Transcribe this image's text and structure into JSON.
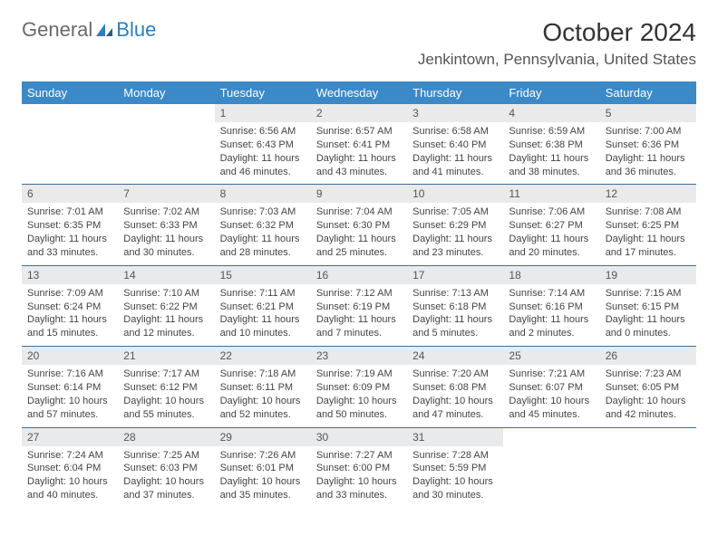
{
  "header": {
    "logo_part1": "General",
    "logo_part2": "Blue",
    "month_title": "October 2024",
    "location": "Jenkintown, Pennsylvania, United States"
  },
  "colors": {
    "header_blue": "#3b89c7",
    "text_gray": "#6a6a6a",
    "brand_blue": "#2a7fbf",
    "daynum_bg": "#e9eaeb"
  },
  "day_names": [
    "Sunday",
    "Monday",
    "Tuesday",
    "Wednesday",
    "Thursday",
    "Friday",
    "Saturday"
  ],
  "weeks": [
    [
      null,
      null,
      {
        "n": "1",
        "sr": "Sunrise: 6:56 AM",
        "ss": "Sunset: 6:43 PM",
        "dl1": "Daylight: 11 hours",
        "dl2": "and 46 minutes."
      },
      {
        "n": "2",
        "sr": "Sunrise: 6:57 AM",
        "ss": "Sunset: 6:41 PM",
        "dl1": "Daylight: 11 hours",
        "dl2": "and 43 minutes."
      },
      {
        "n": "3",
        "sr": "Sunrise: 6:58 AM",
        "ss": "Sunset: 6:40 PM",
        "dl1": "Daylight: 11 hours",
        "dl2": "and 41 minutes."
      },
      {
        "n": "4",
        "sr": "Sunrise: 6:59 AM",
        "ss": "Sunset: 6:38 PM",
        "dl1": "Daylight: 11 hours",
        "dl2": "and 38 minutes."
      },
      {
        "n": "5",
        "sr": "Sunrise: 7:00 AM",
        "ss": "Sunset: 6:36 PM",
        "dl1": "Daylight: 11 hours",
        "dl2": "and 36 minutes."
      }
    ],
    [
      {
        "n": "6",
        "sr": "Sunrise: 7:01 AM",
        "ss": "Sunset: 6:35 PM",
        "dl1": "Daylight: 11 hours",
        "dl2": "and 33 minutes."
      },
      {
        "n": "7",
        "sr": "Sunrise: 7:02 AM",
        "ss": "Sunset: 6:33 PM",
        "dl1": "Daylight: 11 hours",
        "dl2": "and 30 minutes."
      },
      {
        "n": "8",
        "sr": "Sunrise: 7:03 AM",
        "ss": "Sunset: 6:32 PM",
        "dl1": "Daylight: 11 hours",
        "dl2": "and 28 minutes."
      },
      {
        "n": "9",
        "sr": "Sunrise: 7:04 AM",
        "ss": "Sunset: 6:30 PM",
        "dl1": "Daylight: 11 hours",
        "dl2": "and 25 minutes."
      },
      {
        "n": "10",
        "sr": "Sunrise: 7:05 AM",
        "ss": "Sunset: 6:29 PM",
        "dl1": "Daylight: 11 hours",
        "dl2": "and 23 minutes."
      },
      {
        "n": "11",
        "sr": "Sunrise: 7:06 AM",
        "ss": "Sunset: 6:27 PM",
        "dl1": "Daylight: 11 hours",
        "dl2": "and 20 minutes."
      },
      {
        "n": "12",
        "sr": "Sunrise: 7:08 AM",
        "ss": "Sunset: 6:25 PM",
        "dl1": "Daylight: 11 hours",
        "dl2": "and 17 minutes."
      }
    ],
    [
      {
        "n": "13",
        "sr": "Sunrise: 7:09 AM",
        "ss": "Sunset: 6:24 PM",
        "dl1": "Daylight: 11 hours",
        "dl2": "and 15 minutes."
      },
      {
        "n": "14",
        "sr": "Sunrise: 7:10 AM",
        "ss": "Sunset: 6:22 PM",
        "dl1": "Daylight: 11 hours",
        "dl2": "and 12 minutes."
      },
      {
        "n": "15",
        "sr": "Sunrise: 7:11 AM",
        "ss": "Sunset: 6:21 PM",
        "dl1": "Daylight: 11 hours",
        "dl2": "and 10 minutes."
      },
      {
        "n": "16",
        "sr": "Sunrise: 7:12 AM",
        "ss": "Sunset: 6:19 PM",
        "dl1": "Daylight: 11 hours",
        "dl2": "and 7 minutes."
      },
      {
        "n": "17",
        "sr": "Sunrise: 7:13 AM",
        "ss": "Sunset: 6:18 PM",
        "dl1": "Daylight: 11 hours",
        "dl2": "and 5 minutes."
      },
      {
        "n": "18",
        "sr": "Sunrise: 7:14 AM",
        "ss": "Sunset: 6:16 PM",
        "dl1": "Daylight: 11 hours",
        "dl2": "and 2 minutes."
      },
      {
        "n": "19",
        "sr": "Sunrise: 7:15 AM",
        "ss": "Sunset: 6:15 PM",
        "dl1": "Daylight: 11 hours",
        "dl2": "and 0 minutes."
      }
    ],
    [
      {
        "n": "20",
        "sr": "Sunrise: 7:16 AM",
        "ss": "Sunset: 6:14 PM",
        "dl1": "Daylight: 10 hours",
        "dl2": "and 57 minutes."
      },
      {
        "n": "21",
        "sr": "Sunrise: 7:17 AM",
        "ss": "Sunset: 6:12 PM",
        "dl1": "Daylight: 10 hours",
        "dl2": "and 55 minutes."
      },
      {
        "n": "22",
        "sr": "Sunrise: 7:18 AM",
        "ss": "Sunset: 6:11 PM",
        "dl1": "Daylight: 10 hours",
        "dl2": "and 52 minutes."
      },
      {
        "n": "23",
        "sr": "Sunrise: 7:19 AM",
        "ss": "Sunset: 6:09 PM",
        "dl1": "Daylight: 10 hours",
        "dl2": "and 50 minutes."
      },
      {
        "n": "24",
        "sr": "Sunrise: 7:20 AM",
        "ss": "Sunset: 6:08 PM",
        "dl1": "Daylight: 10 hours",
        "dl2": "and 47 minutes."
      },
      {
        "n": "25",
        "sr": "Sunrise: 7:21 AM",
        "ss": "Sunset: 6:07 PM",
        "dl1": "Daylight: 10 hours",
        "dl2": "and 45 minutes."
      },
      {
        "n": "26",
        "sr": "Sunrise: 7:23 AM",
        "ss": "Sunset: 6:05 PM",
        "dl1": "Daylight: 10 hours",
        "dl2": "and 42 minutes."
      }
    ],
    [
      {
        "n": "27",
        "sr": "Sunrise: 7:24 AM",
        "ss": "Sunset: 6:04 PM",
        "dl1": "Daylight: 10 hours",
        "dl2": "and 40 minutes."
      },
      {
        "n": "28",
        "sr": "Sunrise: 7:25 AM",
        "ss": "Sunset: 6:03 PM",
        "dl1": "Daylight: 10 hours",
        "dl2": "and 37 minutes."
      },
      {
        "n": "29",
        "sr": "Sunrise: 7:26 AM",
        "ss": "Sunset: 6:01 PM",
        "dl1": "Daylight: 10 hours",
        "dl2": "and 35 minutes."
      },
      {
        "n": "30",
        "sr": "Sunrise: 7:27 AM",
        "ss": "Sunset: 6:00 PM",
        "dl1": "Daylight: 10 hours",
        "dl2": "and 33 minutes."
      },
      {
        "n": "31",
        "sr": "Sunrise: 7:28 AM",
        "ss": "Sunset: 5:59 PM",
        "dl1": "Daylight: 10 hours",
        "dl2": "and 30 minutes."
      },
      null,
      null
    ]
  ]
}
